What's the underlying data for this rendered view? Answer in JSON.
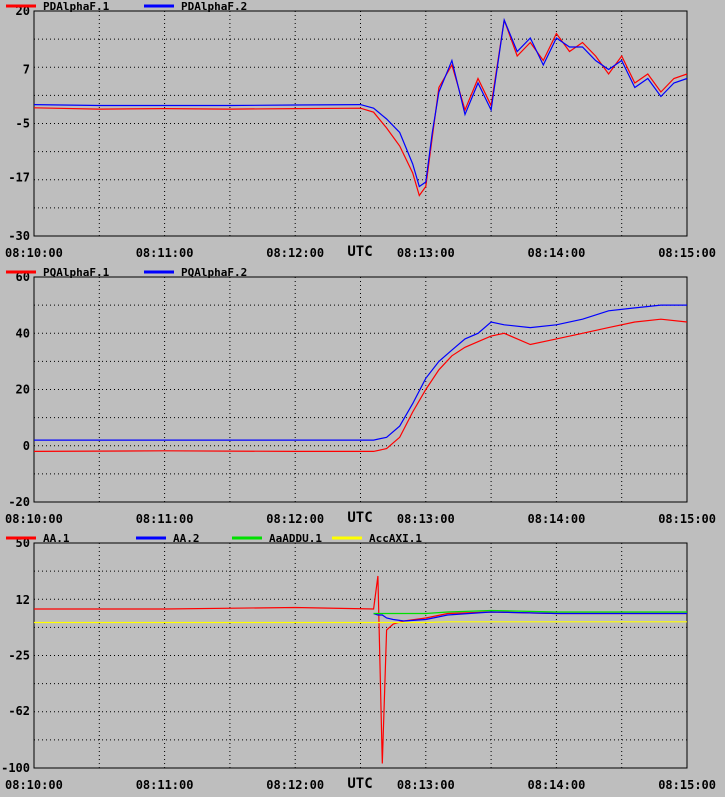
{
  "chart_data": [
    {
      "type": "line",
      "title": "",
      "xlabel": "UTC",
      "ylabel": "",
      "x_ticks": [
        "08:10:00",
        "08:11:00",
        "08:12:00",
        "08:13:00",
        "08:14:00",
        "08:15:00"
      ],
      "xlim": [
        "08:10:00",
        "08:15:00"
      ],
      "ylim": [
        -30,
        20
      ],
      "y_ticks": [
        "20",
        "7",
        "-5",
        "-17",
        "-30"
      ],
      "y_tick_values": [
        20,
        7,
        -5,
        -17,
        -30
      ],
      "grid": true,
      "legend": "top-left",
      "x": [
        "08:10:00",
        "08:10:30",
        "08:11:00",
        "08:11:30",
        "08:12:00",
        "08:12:30",
        "08:12:36",
        "08:12:42",
        "08:12:48",
        "08:12:54",
        "08:12:57",
        "08:13:00",
        "08:13:03",
        "08:13:06",
        "08:13:12",
        "08:13:18",
        "08:13:24",
        "08:13:30",
        "08:13:36",
        "08:13:42",
        "08:13:48",
        "08:13:54",
        "08:14:00",
        "08:14:06",
        "08:14:12",
        "08:14:18",
        "08:14:24",
        "08:14:30",
        "08:14:36",
        "08:14:42",
        "08:14:48",
        "08:14:54",
        "08:15:00"
      ],
      "series": [
        {
          "name": "PDAlphaF.1",
          "color": "#ff0000",
          "values": [
            -1.5,
            -1.8,
            -1.7,
            -1.8,
            -1.7,
            -1.6,
            -2.5,
            -6,
            -10,
            -16,
            -21,
            -19,
            -8,
            3,
            8,
            -2,
            5,
            -1,
            18,
            10,
            13,
            9,
            15,
            11,
            13,
            10,
            6,
            10,
            4,
            6,
            2,
            5,
            6
          ]
        },
        {
          "name": "PDAlphaF.2",
          "color": "#0000ff",
          "values": [
            -0.8,
            -1,
            -1,
            -1,
            -0.9,
            -0.8,
            -1.6,
            -4,
            -7,
            -14,
            -19,
            -18,
            -7,
            2,
            9,
            -3,
            4,
            -2,
            18,
            11,
            14,
            8,
            14,
            12,
            12,
            9,
            7,
            9,
            3,
            5,
            1,
            4,
            5
          ]
        }
      ]
    },
    {
      "type": "line",
      "title": "",
      "xlabel": "UTC",
      "ylabel": "",
      "x_ticks": [
        "08:10:00",
        "08:11:00",
        "08:12:00",
        "08:13:00",
        "08:14:00",
        "08:15:00"
      ],
      "xlim": [
        "08:10:00",
        "08:15:00"
      ],
      "ylim": [
        -20,
        60
      ],
      "y_ticks": [
        "60",
        "40",
        "20",
        "0",
        "-20"
      ],
      "y_tick_values": [
        60,
        40,
        20,
        0,
        -20
      ],
      "grid": true,
      "legend": "top-left",
      "x": [
        "08:10:00",
        "08:11:00",
        "08:12:00",
        "08:12:36",
        "08:12:42",
        "08:12:48",
        "08:12:54",
        "08:13:00",
        "08:13:06",
        "08:13:12",
        "08:13:18",
        "08:13:24",
        "08:13:30",
        "08:13:36",
        "08:13:48",
        "08:14:00",
        "08:14:12",
        "08:14:24",
        "08:14:36",
        "08:14:48",
        "08:15:00"
      ],
      "series": [
        {
          "name": "PQAlphaF.1",
          "color": "#ff0000",
          "values": [
            -2,
            -1.8,
            -2,
            -2,
            -1,
            3,
            12,
            20,
            27,
            32,
            35,
            37,
            39,
            40,
            36,
            38,
            40,
            42,
            44,
            45,
            44
          ]
        },
        {
          "name": "PQAlphaF.2",
          "color": "#0000ff",
          "values": [
            2,
            2,
            2,
            2,
            3,
            7,
            15,
            24,
            30,
            34,
            38,
            40,
            44,
            43,
            42,
            43,
            45,
            48,
            49,
            50,
            50
          ]
        }
      ]
    },
    {
      "type": "line",
      "title": "",
      "xlabel": "UTC",
      "ylabel": "",
      "x_ticks": [
        "08:10:00",
        "08:11:00",
        "08:12:00",
        "08:13:00",
        "08:14:00",
        "08:15:00"
      ],
      "xlim": [
        "08:10:00",
        "08:15:00"
      ],
      "ylim": [
        -100,
        50
      ],
      "y_ticks": [
        "50",
        "12",
        "-25",
        "-62",
        "-100"
      ],
      "y_tick_values": [
        50,
        12,
        -25,
        -62,
        -100
      ],
      "grid": true,
      "legend": "top",
      "x": [
        "08:10:00",
        "08:11:00",
        "08:12:00",
        "08:12:36",
        "08:12:38",
        "08:12:40",
        "08:12:42",
        "08:12:45",
        "08:12:50",
        "08:13:00",
        "08:13:10",
        "08:13:30",
        "08:14:00",
        "08:14:30",
        "08:15:00"
      ],
      "series": [
        {
          "name": "AA.1",
          "color": "#ff0000",
          "values": [
            6,
            6,
            7,
            6,
            28,
            -97,
            -8,
            -4,
            -2,
            0,
            3,
            4,
            3,
            3,
            3
          ]
        },
        {
          "name": "AA.2",
          "color": "#0000ff",
          "values": [
            null,
            null,
            null,
            3,
            2,
            2,
            0,
            -1,
            -2,
            -1,
            2,
            4,
            3,
            3,
            3
          ]
        },
        {
          "name": "AaADDU.1",
          "color": "#00e000",
          "values": [
            null,
            null,
            null,
            3,
            3,
            3,
            3,
            3,
            3,
            3,
            4,
            5,
            4,
            4,
            4
          ]
        },
        {
          "name": "AccAXI.1",
          "color": "#ffff00",
          "values": [
            -3,
            -3,
            -3,
            -3,
            -3,
            -3,
            -3,
            -3,
            -3,
            -3,
            -2.5,
            -2.5,
            -2.5,
            -2.5,
            -2.5
          ]
        }
      ]
    }
  ]
}
